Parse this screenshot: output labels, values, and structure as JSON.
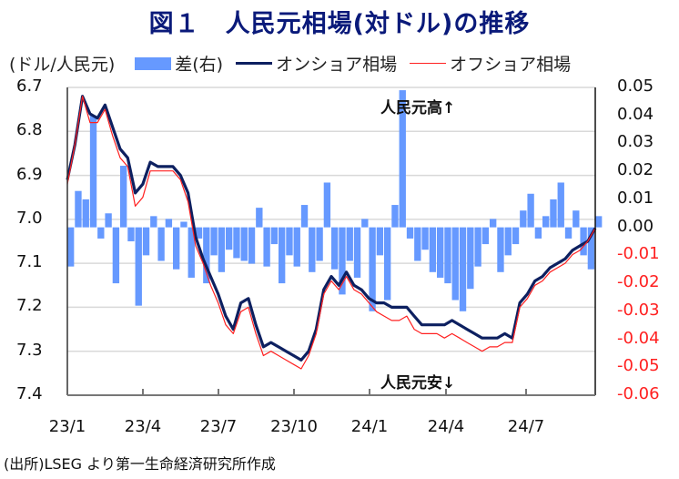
{
  "title": "図１　人民元相場(対ドル)の推移",
  "legend": {
    "unit": "(ドル/人民元)",
    "items": [
      {
        "label": "差(右)",
        "type": "bar",
        "color": "#6699ff"
      },
      {
        "label": "オンショア相場",
        "type": "line",
        "color": "#0d2060"
      },
      {
        "label": "オフショア相場",
        "type": "line",
        "color": "#ff2020"
      }
    ]
  },
  "annotations": {
    "up": "人民元高↑",
    "down": "人民元安↓"
  },
  "source": "(出所)LSEG より第一生命経済研究所作成",
  "chart_data": {
    "type": "line",
    "title": "図１　人民元相場(対ドル)の推移",
    "xlabel": "",
    "ylabel": "(ドル/人民元)",
    "y_left": {
      "range": [
        6.7,
        7.4
      ],
      "inverted": true,
      "ticks": [
        "6.7",
        "6.8",
        "6.9",
        "7.0",
        "7.1",
        "7.2",
        "7.3",
        "7.4"
      ]
    },
    "y_right": {
      "range": [
        -0.06,
        0.05
      ],
      "ticks": [
        "0.05",
        "0.04",
        "0.03",
        "0.02",
        "0.01",
        "0.00",
        "-0.01",
        "-0.02",
        "-0.03",
        "-0.04",
        "-0.05",
        "-0.06"
      ]
    },
    "x_ticks": [
      "23/1",
      "23/4",
      "23/7",
      "23/10",
      "24/1",
      "24/4",
      "24/7"
    ],
    "grid": true,
    "legend_position": "top",
    "x": [
      0,
      0.3,
      0.6,
      0.9,
      1.2,
      1.5,
      1.8,
      2.1,
      2.4,
      2.7,
      3.0,
      3.3,
      3.6,
      3.9,
      4.2,
      4.5,
      4.8,
      5.1,
      5.4,
      5.7,
      6.0,
      6.3,
      6.6,
      6.9,
      7.2,
      7.5,
      7.8,
      8.1,
      8.4,
      8.7,
      9.0,
      9.3,
      9.6,
      9.9,
      10.2,
      10.5,
      10.8,
      11.1,
      11.4,
      11.7,
      12.0,
      12.3,
      12.6,
      12.9,
      13.2,
      13.5,
      13.8,
      14.1,
      14.4,
      14.7,
      15.0,
      15.3,
      15.6,
      15.9,
      16.2,
      16.5,
      16.8,
      17.1,
      17.4,
      17.7,
      18.0,
      18.3,
      18.6,
      18.9,
      19.2,
      19.5,
      19.8,
      20.1,
      20.4,
      20.7,
      21.0
    ],
    "series": [
      {
        "name": "オンショア相場",
        "axis": "left",
        "color": "#0d2060",
        "values": [
          6.91,
          6.83,
          6.72,
          6.76,
          6.77,
          6.74,
          6.79,
          6.84,
          6.86,
          6.94,
          6.92,
          6.87,
          6.88,
          6.88,
          6.88,
          6.9,
          6.94,
          7.04,
          7.09,
          7.13,
          7.17,
          7.22,
          7.25,
          7.19,
          7.18,
          7.24,
          7.29,
          7.28,
          7.29,
          7.3,
          7.31,
          7.32,
          7.3,
          7.25,
          7.16,
          7.13,
          7.15,
          7.12,
          7.15,
          7.16,
          7.18,
          7.19,
          7.19,
          7.2,
          7.2,
          7.2,
          7.22,
          7.24,
          7.24,
          7.24,
          7.24,
          7.23,
          7.24,
          7.25,
          7.26,
          7.27,
          7.27,
          7.27,
          7.26,
          7.27,
          7.19,
          7.17,
          7.14,
          7.13,
          7.11,
          7.1,
          7.09,
          7.07,
          7.06,
          7.05,
          7.02
        ]
      },
      {
        "name": "オフショア相場",
        "axis": "left",
        "color": "#ff2020",
        "values": [
          6.92,
          6.83,
          6.72,
          6.78,
          6.78,
          6.75,
          6.81,
          6.86,
          6.88,
          6.97,
          6.95,
          6.89,
          6.89,
          6.89,
          6.89,
          6.91,
          6.96,
          7.06,
          7.1,
          7.15,
          7.19,
          7.24,
          7.26,
          7.21,
          7.2,
          7.26,
          7.31,
          7.3,
          7.31,
          7.32,
          7.33,
          7.34,
          7.31,
          7.26,
          7.17,
          7.14,
          7.16,
          7.13,
          7.16,
          7.17,
          7.19,
          7.21,
          7.22,
          7.23,
          7.23,
          7.22,
          7.25,
          7.26,
          7.26,
          7.26,
          7.27,
          7.26,
          7.27,
          7.28,
          7.29,
          7.3,
          7.29,
          7.29,
          7.28,
          7.28,
          7.2,
          7.18,
          7.15,
          7.14,
          7.12,
          7.11,
          7.1,
          7.08,
          7.07,
          7.05,
          7.02
        ]
      }
    ],
    "bars": {
      "name": "差(右)",
      "axis": "right",
      "color": "#6699ff",
      "values": [
        -0.014,
        0.013,
        0.01,
        0.04,
        -0.004,
        0.005,
        -0.02,
        0.022,
        -0.005,
        -0.028,
        -0.01,
        0.004,
        -0.012,
        0.003,
        -0.015,
        0.002,
        -0.018,
        -0.004,
        -0.02,
        -0.01,
        -0.016,
        -0.008,
        -0.011,
        -0.012,
        -0.013,
        0.007,
        -0.014,
        -0.006,
        -0.02,
        -0.01,
        -0.014,
        0.008,
        -0.016,
        -0.012,
        0.016,
        -0.015,
        -0.024,
        -0.012,
        -0.018,
        0.003,
        -0.03,
        -0.01,
        -0.026,
        0.008,
        0.049,
        -0.004,
        -0.012,
        -0.008,
        -0.016,
        -0.018,
        -0.02,
        -0.026,
        -0.03,
        -0.022,
        -0.014,
        -0.006,
        0.003,
        -0.016,
        -0.01,
        -0.006,
        0.006,
        0.012,
        -0.004,
        0.004,
        0.01,
        0.016,
        -0.004,
        0.006,
        -0.01,
        -0.015,
        0.004
      ]
    }
  }
}
